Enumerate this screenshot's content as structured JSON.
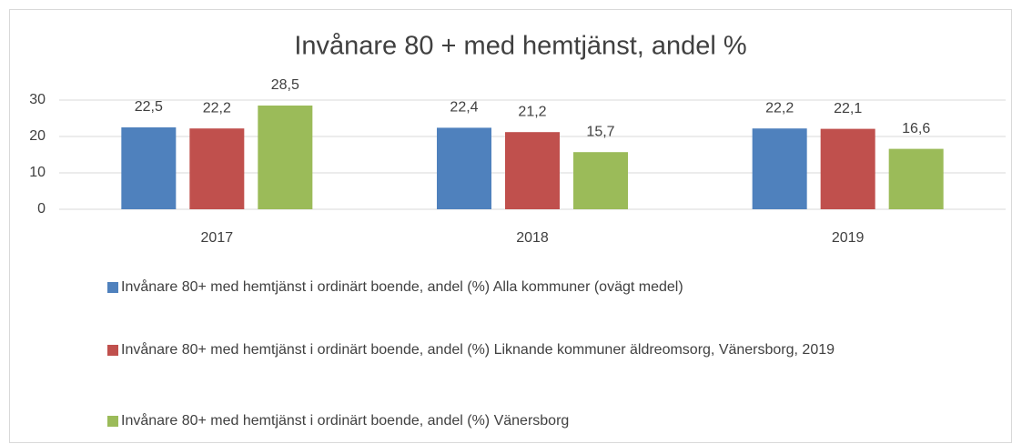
{
  "chart_data": {
    "type": "bar",
    "title": "Invånare 80 + med hemtjänst, andel  %",
    "categories": [
      "2017",
      "2018",
      "2019"
    ],
    "series": [
      {
        "name": "Invånare 80+ med hemtjänst i ordinärt boende, andel (%) Alla kommuner (ovägt medel)",
        "color": "#4f81bd",
        "values": [
          22.5,
          22.4,
          22.2
        ],
        "value_labels": [
          "22,5",
          "22,4",
          "22,2"
        ]
      },
      {
        "name": "Invånare 80+ med hemtjänst i ordinärt boende, andel (%) Liknande kommuner äldreomsorg, Vänersborg, 2019",
        "color": "#c0504d",
        "values": [
          22.2,
          21.2,
          22.1
        ],
        "value_labels": [
          "22,2",
          "21,2",
          "22,1"
        ]
      },
      {
        "name": "Invånare 80+ med hemtjänst i ordinärt boende, andel (%) Vänersborg",
        "color": "#9bbb59",
        "values": [
          28.5,
          15.7,
          16.6
        ],
        "value_labels": [
          "28,5",
          "15,7",
          "16,6"
        ]
      }
    ],
    "ylim": [
      0,
      30
    ],
    "yticks": [
      0,
      10,
      20,
      30
    ],
    "grid": true,
    "legend": "bottom"
  }
}
